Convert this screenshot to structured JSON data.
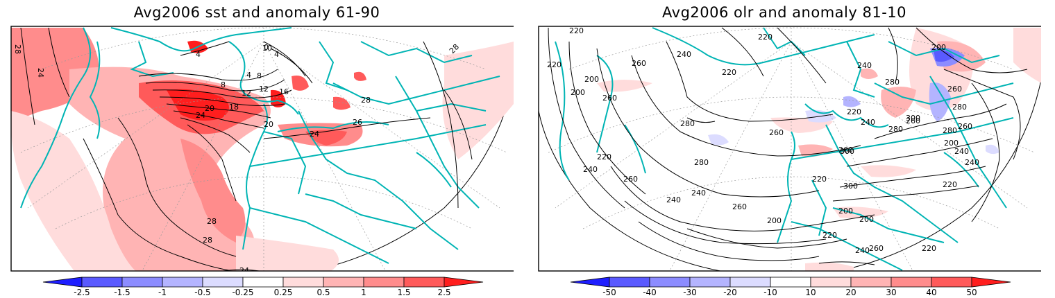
{
  "panels": [
    {
      "title": "Avg2006 sst and anomaly 61-90",
      "colorbar": {
        "labels": [
          "-2.5",
          "-1.5",
          "-1",
          "-0.5",
          "-0.25",
          "0.25",
          "0.5",
          "1",
          "1.5",
          "2.5"
        ],
        "colors": [
          "#1e1eff",
          "#5a5aff",
          "#8c8cff",
          "#b4b4ff",
          "#dcdcff",
          "#ffffff",
          "#ffdcdc",
          "#ffb4b4",
          "#ff8c8c",
          "#ff5a5a",
          "#ff1e1e"
        ]
      },
      "contour_labels": [
        "28",
        "24",
        "20",
        "18",
        "12",
        "8",
        "4",
        "4",
        "8",
        "12",
        "16",
        "20",
        "24",
        "28",
        "28",
        "28",
        "24",
        "10",
        "4",
        "0",
        "26",
        "24",
        "28"
      ]
    },
    {
      "title": "Avg2006 olr and anomaly 81-10",
      "colorbar": {
        "labels": [
          "-50",
          "-40",
          "-30",
          "-20",
          "-10",
          "10",
          "20",
          "30",
          "40",
          "50"
        ],
        "colors": [
          "#1e1eff",
          "#5a5aff",
          "#8c8cff",
          "#b4b4ff",
          "#dcdcff",
          "#ffffff",
          "#ffdcdc",
          "#ffb4b4",
          "#ff8c8c",
          "#ff5a5a",
          "#ff1e1e"
        ]
      },
      "contour_labels": [
        "220",
        "260",
        "240",
        "220",
        "200",
        "260",
        "280",
        "300",
        "280",
        "260",
        "240",
        "220",
        "200",
        "240",
        "220",
        "260",
        "280",
        "300",
        "280",
        "260",
        "240",
        "220",
        "200",
        "220",
        "240",
        "260",
        "280",
        "300",
        "260",
        "240",
        "220",
        "200",
        "240",
        "220",
        "200",
        "260",
        "280",
        "220",
        "260",
        "240",
        "200",
        "260",
        "240",
        "220",
        "200"
      ]
    }
  ]
}
